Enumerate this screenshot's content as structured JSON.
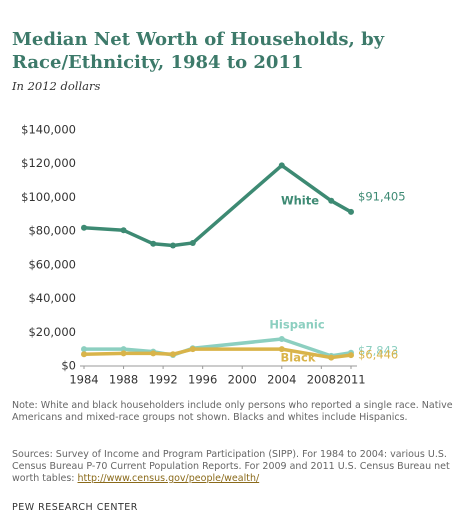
{
  "chart_data": {
    "type": "line",
    "title": "Median Net Worth of Households, by Race/Ethnicity, 1984 to 2011",
    "subtitle": "In 2012 dollars",
    "x": [
      1984,
      1988,
      1991,
      1993,
      1995,
      2004,
      2009,
      2011
    ],
    "xlim": [
      1984,
      2011
    ],
    "xticks": [
      1984,
      1988,
      1992,
      1996,
      2000,
      2004,
      2008,
      2011
    ],
    "ylim": [
      0,
      140000
    ],
    "yticks": [
      {
        "value": 0,
        "label": "$0"
      },
      {
        "value": 20000,
        "label": "$20,000"
      },
      {
        "value": 40000,
        "label": "$40,000"
      },
      {
        "value": 60000,
        "label": "$60,000"
      },
      {
        "value": 80000,
        "label": "$80,000"
      },
      {
        "value": 100000,
        "label": "$100,000"
      },
      {
        "value": 120000,
        "label": "$120,000"
      },
      {
        "value": 140000,
        "label": "$140,000"
      }
    ],
    "grid": false,
    "series": [
      {
        "name": "White",
        "color": "#3d8a73",
        "values": [
          82000,
          80500,
          72500,
          71500,
          73000,
          119000,
          98000,
          91405
        ],
        "value_labels": [
          null,
          null,
          null,
          null,
          null,
          null,
          null,
          "$91,405"
        ]
      },
      {
        "name": "Hispanic",
        "color": "#8ccfc0",
        "values": [
          10000,
          10000,
          8500,
          6500,
          10500,
          16000,
          6000,
          7843
        ],
        "value_labels": [
          null,
          null,
          null,
          null,
          null,
          null,
          null,
          "$7,843"
        ]
      },
      {
        "name": "Black",
        "color": "#d9b44a",
        "values": [
          7000,
          7500,
          7500,
          7000,
          10000,
          10000,
          5000,
          6446
        ],
        "value_labels": [
          null,
          null,
          null,
          null,
          null,
          null,
          null,
          "$6,446"
        ]
      }
    ],
    "note": "Note: White and black householders include only persons who reported a single race. Native Americans and mixed-race groups not shown. Blacks and whites include Hispanics.",
    "sources": "Sources: Survey of Income and Program Participation (SIPP). For 1984 to 2004: various U.S. Census Bureau P-70 Current Population Reports. For 2009 and 2011 U.S. Census Bureau net worth tables:",
    "sources_link": "http://www.census.gov/people/wealth/",
    "footer": "PEW RESEARCH CENTER"
  }
}
